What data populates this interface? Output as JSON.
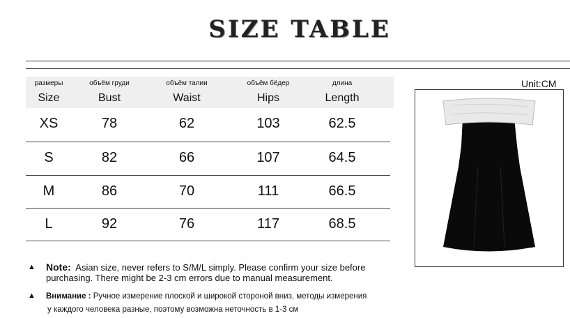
{
  "title": "SIZE TABLE",
  "unit": "Unit:CM",
  "table": {
    "headers": [
      {
        "ru": "размеры",
        "en": "Size"
      },
      {
        "ru": "объём груди",
        "en": "Bust"
      },
      {
        "ru": "объём талии",
        "en": "Waist"
      },
      {
        "ru": "объём бёдер",
        "en": "Hips"
      },
      {
        "ru": "длина",
        "en": "Length"
      }
    ],
    "rows": [
      [
        "XS",
        "78",
        "62",
        "103",
        "62.5"
      ],
      [
        "S",
        "82",
        "66",
        "107",
        "64.5"
      ],
      [
        "M",
        "86",
        "70",
        "111",
        "66.5"
      ],
      [
        "L",
        "92",
        "76",
        "117",
        "68.5"
      ]
    ]
  },
  "notes": {
    "note_label": "Note:",
    "note_line1": "Asian size, never refers to S/M/L simply. Please confirm your size before",
    "note_line2": "purchasing. There might be 2-3 cm errors due to manual measurement.",
    "ru_label": "Внимание :",
    "ru_line1": "Ручное измерение плоской и широкой стороной вниз, методы измерения",
    "ru_line2": "у каждого человека разные, поэтому возможна неточность в 1-3 см"
  },
  "colors": {
    "header_bg": "#efefef",
    "dress": "#0a0a0a",
    "bodice": "#e9e9e9"
  }
}
